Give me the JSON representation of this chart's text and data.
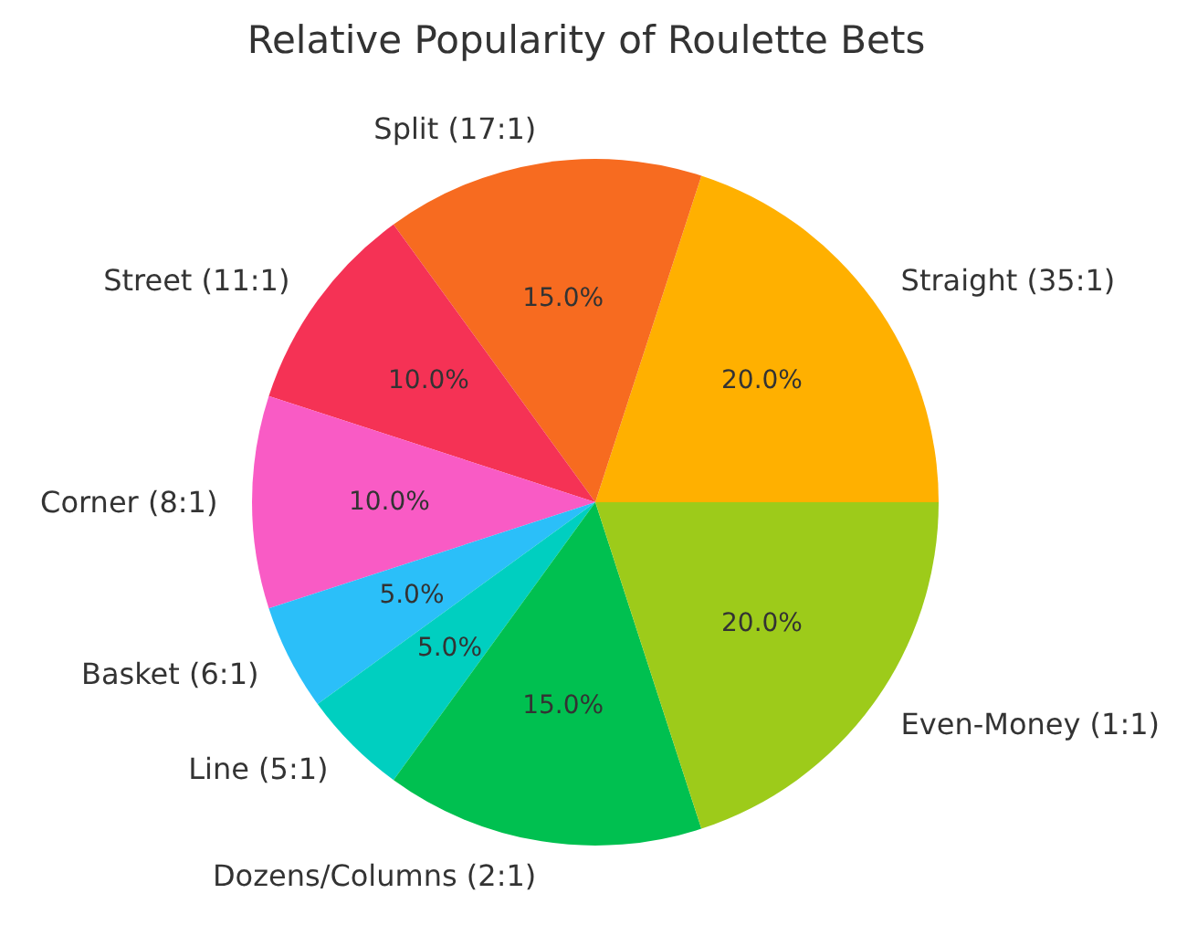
{
  "chart_data": {
    "type": "pie",
    "title": "Relative Popularity of Roulette Bets",
    "categories": [
      "Straight (35:1)",
      "Split (17:1)",
      "Street (11:1)",
      "Corner (8:1)",
      "Basket (6:1)",
      "Line (5:1)",
      "Dozens/Columns (2:1)",
      "Even-Money (1:1)"
    ],
    "values": [
      20,
      15,
      10,
      10,
      5,
      5,
      15,
      20
    ],
    "value_labels": [
      "20.0%",
      "15.0%",
      "10.0%",
      "10.0%",
      "5.0%",
      "5.0%",
      "15.0%",
      "20.0%"
    ],
    "colors": [
      "#ffb000",
      "#f76b20",
      "#f53255",
      "#f95bc5",
      "#2bbff9",
      "#00cfc0",
      "#00c050",
      "#9dcb1a"
    ]
  }
}
